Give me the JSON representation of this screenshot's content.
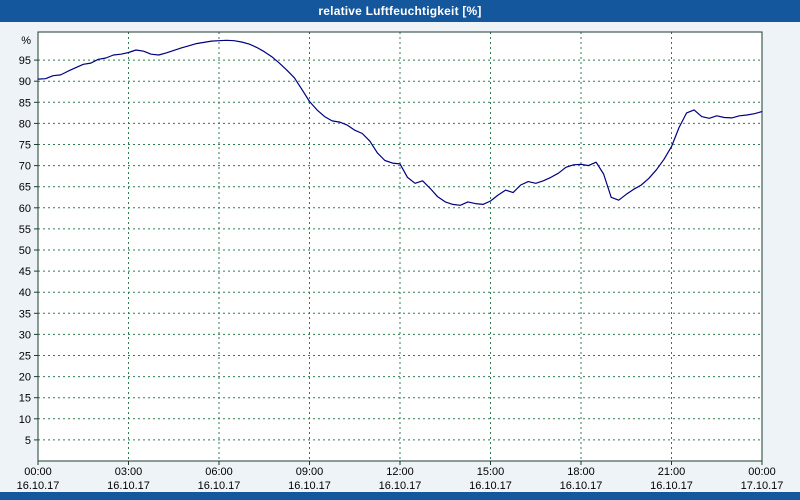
{
  "window": {
    "title": "relative Luftfeuchtigkeit [%]"
  },
  "colors": {
    "titlebar": "#15579c",
    "page_bg": "#eef3f8",
    "plot_bg": "#ffffff",
    "grid": "#2e7d52",
    "axis": "#1d3d2f",
    "line": "#000080"
  },
  "chart_data": {
    "type": "line",
    "title": "relative Luftfeuchtigkeit [%]",
    "xlabel": "",
    "ylabel": "%",
    "ylim": [
      0,
      100
    ],
    "xlim_hours": [
      0,
      24
    ],
    "grid": "on",
    "legend": "none",
    "y_ticks": [
      5,
      10,
      15,
      20,
      25,
      30,
      35,
      40,
      45,
      50,
      55,
      60,
      65,
      70,
      75,
      80,
      85,
      90,
      95
    ],
    "x_ticks": [
      {
        "hour": 0,
        "time": "00:00",
        "date": "16.10.17"
      },
      {
        "hour": 3,
        "time": "03:00",
        "date": "16.10.17"
      },
      {
        "hour": 6,
        "time": "06:00",
        "date": "16.10.17"
      },
      {
        "hour": 9,
        "time": "09:00",
        "date": "16.10.17"
      },
      {
        "hour": 12,
        "time": "12:00",
        "date": "16.10.17"
      },
      {
        "hour": 15,
        "time": "15:00",
        "date": "16.10.17"
      },
      {
        "hour": 18,
        "time": "18:00",
        "date": "16.10.17"
      },
      {
        "hour": 21,
        "time": "21:00",
        "date": "16.10.17"
      },
      {
        "hour": 24,
        "time": "00:00",
        "date": "17.10.17"
      }
    ],
    "series": [
      {
        "name": "relative Luftfeuchtigkeit",
        "unit": "%",
        "color": "#000080",
        "points": [
          [
            0,
            90.5
          ],
          [
            0.25,
            90.6
          ],
          [
            0.5,
            91.3
          ],
          [
            0.75,
            91.5
          ],
          [
            1,
            92.4
          ],
          [
            1.25,
            93.2
          ],
          [
            1.5,
            94
          ],
          [
            1.75,
            94.3
          ],
          [
            2,
            95.2
          ],
          [
            2.25,
            95.5
          ],
          [
            2.5,
            96.2
          ],
          [
            2.75,
            96.4
          ],
          [
            3,
            96.8
          ],
          [
            3.25,
            97.4
          ],
          [
            3.5,
            97.1
          ],
          [
            3.75,
            96.4
          ],
          [
            4,
            96.2
          ],
          [
            4.25,
            96.7
          ],
          [
            4.5,
            97.3
          ],
          [
            4.75,
            97.9
          ],
          [
            5,
            98.4
          ],
          [
            5.25,
            98.9
          ],
          [
            5.5,
            99.2
          ],
          [
            5.75,
            99.5
          ],
          [
            6,
            99.6
          ],
          [
            6.25,
            99.7
          ],
          [
            6.5,
            99.6
          ],
          [
            6.75,
            99.3
          ],
          [
            7,
            98.8
          ],
          [
            7.25,
            98
          ],
          [
            7.5,
            97
          ],
          [
            7.75,
            95.8
          ],
          [
            8,
            94.3
          ],
          [
            8.25,
            92.6
          ],
          [
            8.5,
            90.8
          ],
          [
            8.75,
            88
          ],
          [
            9,
            85.2
          ],
          [
            9.25,
            83.2
          ],
          [
            9.5,
            81.6
          ],
          [
            9.75,
            80.6
          ],
          [
            10,
            80.3
          ],
          [
            10.25,
            79.6
          ],
          [
            10.5,
            78.4
          ],
          [
            10.75,
            77.6
          ],
          [
            11,
            75.8
          ],
          [
            11.25,
            73
          ],
          [
            11.5,
            71.2
          ],
          [
            11.75,
            70.6
          ],
          [
            12,
            70.4
          ],
          [
            12.25,
            67.2
          ],
          [
            12.5,
            65.8
          ],
          [
            12.75,
            66.4
          ],
          [
            13,
            64.6
          ],
          [
            13.25,
            62.6
          ],
          [
            13.5,
            61.4
          ],
          [
            13.75,
            60.8
          ],
          [
            14,
            60.6
          ],
          [
            14.25,
            61.4
          ],
          [
            14.5,
            61
          ],
          [
            14.75,
            60.8
          ],
          [
            15,
            61.6
          ],
          [
            15.25,
            63
          ],
          [
            15.5,
            64.2
          ],
          [
            15.75,
            63.6
          ],
          [
            16,
            65.4
          ],
          [
            16.25,
            66.2
          ],
          [
            16.5,
            65.8
          ],
          [
            16.75,
            66.4
          ],
          [
            17,
            67.2
          ],
          [
            17.25,
            68.2
          ],
          [
            17.5,
            69.6
          ],
          [
            17.75,
            70.2
          ],
          [
            18,
            70.3
          ],
          [
            18.25,
            70
          ],
          [
            18.5,
            70.8
          ],
          [
            18.75,
            68
          ],
          [
            19,
            62.5
          ],
          [
            19.25,
            61.8
          ],
          [
            19.5,
            63.2
          ],
          [
            19.75,
            64.4
          ],
          [
            20,
            65.4
          ],
          [
            20.25,
            67
          ],
          [
            20.5,
            69
          ],
          [
            20.75,
            71.5
          ],
          [
            21,
            74.5
          ],
          [
            21.25,
            79
          ],
          [
            21.5,
            82.5
          ],
          [
            21.75,
            83.2
          ],
          [
            22,
            81.6
          ],
          [
            22.25,
            81.2
          ],
          [
            22.5,
            81.8
          ],
          [
            22.75,
            81.4
          ],
          [
            23,
            81.3
          ],
          [
            23.25,
            81.8
          ],
          [
            23.5,
            82
          ],
          [
            23.75,
            82.3
          ],
          [
            24,
            82.8
          ]
        ]
      }
    ]
  }
}
